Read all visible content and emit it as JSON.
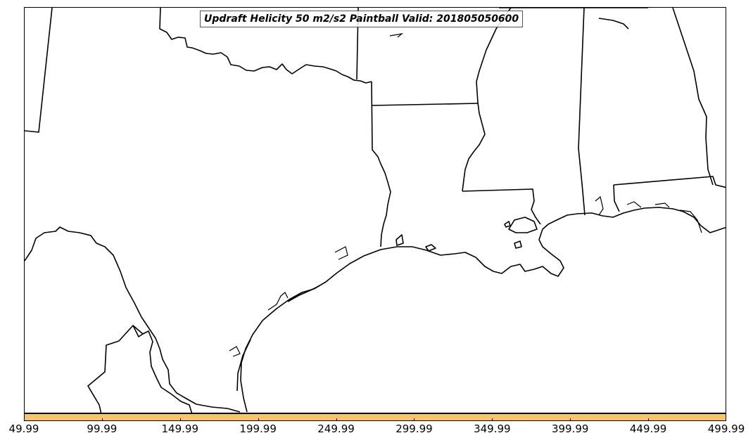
{
  "title": "Updraft Helicity 50 m2/s2 Paintball Valid: 201805050600",
  "colorbar": {
    "color": "#f9c46b",
    "ticks": [
      "49.99",
      "99.99",
      "149.99",
      "199.99",
      "249.99",
      "299.99",
      "349.99",
      "399.99",
      "449.99",
      "499.99"
    ],
    "range": [
      49.99,
      499.99
    ]
  },
  "map": {
    "line_color": "#000000",
    "background": "#ffffff"
  }
}
